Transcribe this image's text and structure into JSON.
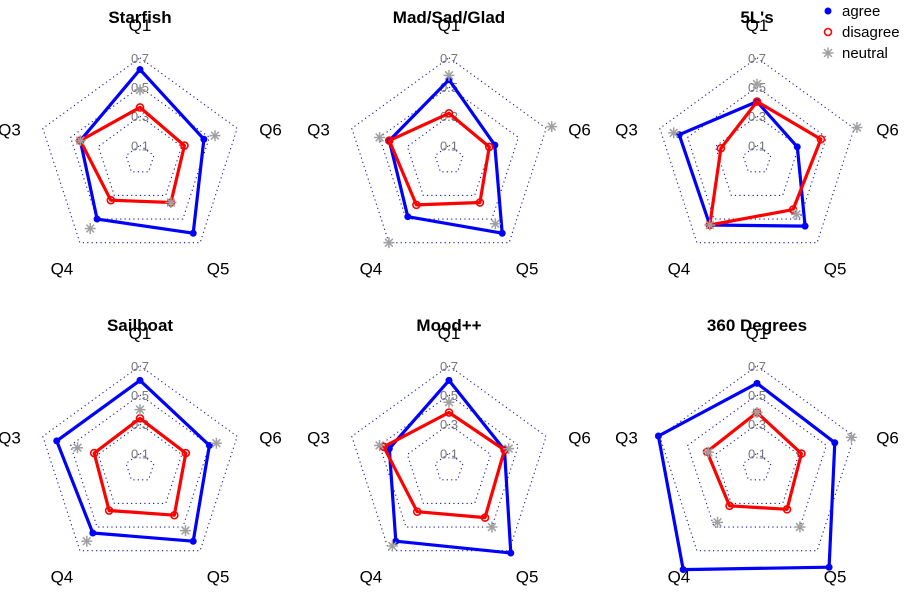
{
  "chart_data": {
    "type": "radar",
    "axes": [
      "Q1",
      "Q6",
      "Q5",
      "Q4",
      "Q3"
    ],
    "rlim": [
      0,
      0.7
    ],
    "ticks": [
      0.1,
      0.3,
      0.5,
      0.7
    ],
    "tick_labels": [
      "0.1",
      "0.3",
      "0.5",
      "0.7"
    ],
    "gridlines": "dotted",
    "legend": {
      "placement": "top-right",
      "items": [
        {
          "label": "agree",
          "color": "#0000ff",
          "marker": "dot"
        },
        {
          "label": "disagree",
          "color": "#ff0000",
          "marker": "circle"
        },
        {
          "label": "neutral",
          "color": "#a0a0a0",
          "marker": "star"
        }
      ]
    },
    "panels": [
      {
        "title": "Starfish",
        "series": [
          {
            "name": "agree",
            "values": [
              0.62,
              0.46,
              0.62,
              0.5,
              0.43
            ]
          },
          {
            "name": "disagree",
            "values": [
              0.36,
              0.32,
              0.36,
              0.34,
              0.43
            ]
          },
          {
            "name": "neutral",
            "values": [
              0.48,
              0.54,
              0.36,
              0.58,
              0.43
            ]
          }
        ]
      },
      {
        "title": "Mad/Sad/Glad",
        "series": [
          {
            "name": "agree",
            "values": [
              0.55,
              0.33,
              0.62,
              0.48,
              0.43
            ]
          },
          {
            "name": "disagree",
            "values": [
              0.32,
              0.29,
              0.36,
              0.38,
              0.43
            ]
          },
          {
            "name": "neutral",
            "values": [
              0.58,
              0.74,
              0.54,
              0.7,
              0.5
            ]
          }
        ]
      },
      {
        "title": "5L's",
        "series": [
          {
            "name": "agree",
            "values": [
              0.4,
              0.29,
              0.56,
              0.55,
              0.56
            ]
          },
          {
            "name": "disagree",
            "values": [
              0.4,
              0.46,
              0.42,
              0.55,
              0.26
            ]
          },
          {
            "name": "neutral",
            "values": [
              0.52,
              0.72,
              0.46,
              0.55,
              0.6
            ]
          }
        ]
      },
      {
        "title": "Sailboat",
        "series": [
          {
            "name": "agree",
            "values": [
              0.6,
              0.5,
              0.62,
              0.55,
              0.6
            ]
          },
          {
            "name": "disagree",
            "values": [
              0.34,
              0.33,
              0.4,
              0.36,
              0.33
            ]
          },
          {
            "name": "neutral",
            "values": [
              0.4,
              0.55,
              0.53,
              0.62,
              0.45
            ]
          }
        ]
      },
      {
        "title": "Mood++",
        "series": [
          {
            "name": "agree",
            "values": [
              0.6,
              0.4,
              0.72,
              0.62,
              0.43
            ]
          },
          {
            "name": "disagree",
            "values": [
              0.38,
              0.4,
              0.42,
              0.37,
              0.47
            ]
          },
          {
            "name": "neutral",
            "values": [
              0.45,
              0.43,
              0.5,
              0.66,
              0.5
            ]
          }
        ]
      },
      {
        "title": "360 Degrees",
        "series": [
          {
            "name": "agree",
            "values": [
              0.58,
              0.56,
              0.84,
              0.86,
              0.71
            ]
          },
          {
            "name": "disagree",
            "values": [
              0.38,
              0.32,
              0.35,
              0.32,
              0.36
            ]
          },
          {
            "name": "neutral",
            "values": [
              0.38,
              0.68,
              0.5,
              0.46,
              0.35
            ]
          }
        ]
      }
    ]
  }
}
